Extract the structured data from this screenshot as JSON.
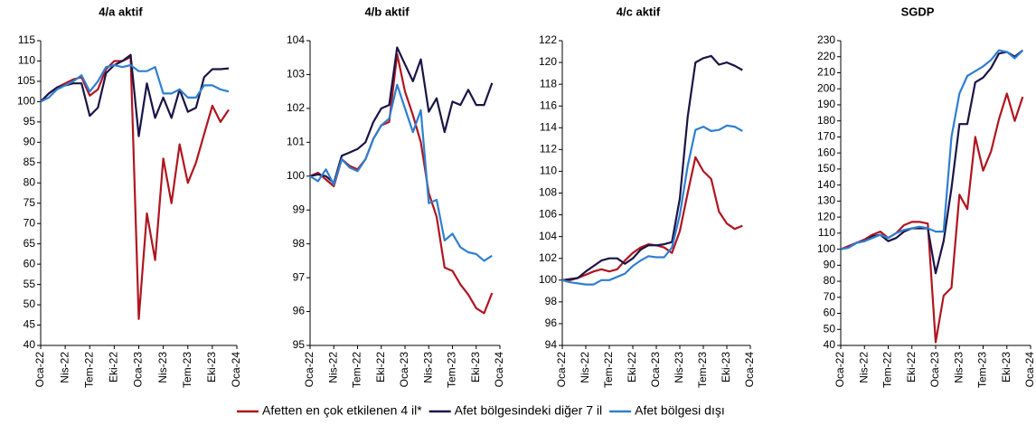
{
  "chart_data": [
    {
      "type": "line",
      "title": "4/a aktif",
      "categories": [
        "Oca-22",
        null,
        null,
        "Nis-22",
        null,
        null,
        "Tem-22",
        null,
        null,
        "Eki-22",
        null,
        null,
        "Oca-23",
        null,
        null,
        "Nis-23",
        null,
        null,
        "Tem-23",
        null,
        null,
        "Eki-23",
        null,
        null,
        "Oca-24"
      ],
      "ylim": [
        40,
        115
      ],
      "yticks": [
        40,
        45,
        50,
        55,
        60,
        65,
        70,
        75,
        80,
        85,
        90,
        95,
        100,
        105,
        110,
        115
      ],
      "series": [
        {
          "name": "Afetten en çok etkilenen 4 il*",
          "color": "#b0151f",
          "values": [
            100,
            102,
            103.5,
            104.5,
            105.5,
            106,
            101.5,
            103,
            108,
            110,
            110,
            111,
            46.5,
            72.5,
            61,
            86,
            75,
            89.5,
            80,
            85,
            92,
            99,
            95,
            98,
            null
          ]
        },
        {
          "name": "Afet bölgesindeki diğer 7 il",
          "color": "#1a1446",
          "values": [
            100,
            102,
            103.5,
            104,
            104.5,
            104.5,
            96.5,
            98.5,
            107,
            109,
            110,
            111.5,
            91.5,
            104.5,
            96,
            101,
            96,
            103,
            97.5,
            98.5,
            106,
            108,
            108,
            108.2,
            null
          ]
        },
        {
          "name": "Afet bölgesi dışı",
          "color": "#2e7fd1",
          "values": [
            100,
            101,
            103,
            104,
            105,
            106.5,
            102.5,
            105,
            108.5,
            109,
            108.5,
            109,
            107.5,
            107.5,
            108.5,
            102,
            102,
            103,
            101,
            101,
            104,
            104,
            103,
            102.5,
            null
          ]
        }
      ]
    },
    {
      "type": "line",
      "title": "4/b aktif",
      "categories": [
        "Oca-22",
        null,
        null,
        "Nis-22",
        null,
        null,
        "Tem-22",
        null,
        null,
        "Eki-22",
        null,
        null,
        "Oca-23",
        null,
        null,
        "Nis-23",
        null,
        null,
        "Tem-23",
        null,
        null,
        "Eki-23",
        null,
        null,
        "Oca-24"
      ],
      "ylim": [
        95,
        104
      ],
      "yticks": [
        95,
        96,
        97,
        98,
        99,
        100,
        101,
        102,
        103,
        104
      ],
      "series": [
        {
          "name": "Afetten en çok etkilenen 4 il*",
          "color": "#b0151f",
          "values": [
            100,
            100.1,
            99.9,
            99.7,
            100.5,
            100.3,
            100.2,
            100.5,
            101.1,
            101.5,
            101.6,
            103.6,
            102.5,
            101.8,
            101,
            99.5,
            98.8,
            97.3,
            97.2,
            96.8,
            96.5,
            96.1,
            95.95,
            96.55,
            null
          ]
        },
        {
          "name": "Afet bölgesindeki diğer 7 il",
          "color": "#1a1446",
          "values": [
            100,
            100.05,
            100,
            99.8,
            100.6,
            100.7,
            100.8,
            101,
            101.6,
            102,
            102.1,
            103.8,
            103.3,
            102.8,
            103.45,
            101.9,
            102.3,
            101.3,
            102.2,
            102.1,
            102.55,
            102.1,
            102.1,
            102.75,
            null
          ]
        },
        {
          "name": "Afet bölgesi dışı",
          "color": "#2e7fd1",
          "values": [
            100,
            99.85,
            100.2,
            99.75,
            100.5,
            100.25,
            100.15,
            100.5,
            101.1,
            101.5,
            101.7,
            102.7,
            102,
            101.3,
            101.95,
            99.2,
            99.3,
            98.1,
            98.3,
            97.9,
            97.75,
            97.7,
            97.5,
            97.65,
            null
          ]
        }
      ]
    },
    {
      "type": "line",
      "title": "4/c aktif",
      "categories": [
        "Oca-22",
        null,
        null,
        "Nis-22",
        null,
        null,
        "Tem-22",
        null,
        null,
        "Eki-22",
        null,
        null,
        "Oca-23",
        null,
        null,
        "Nis-23",
        null,
        null,
        "Tem-23",
        null,
        null,
        "Eki-23",
        null,
        null,
        "Oca-24"
      ],
      "ylim": [
        94,
        122
      ],
      "yticks": [
        94,
        96,
        98,
        100,
        102,
        104,
        106,
        108,
        110,
        112,
        114,
        116,
        118,
        120,
        122
      ],
      "series": [
        {
          "name": "Afetten en çok etkilenen 4 il*",
          "color": "#b0151f",
          "values": [
            100,
            100,
            100.2,
            100.5,
            100.8,
            101,
            100.8,
            101,
            101.8,
            102.5,
            103,
            103.3,
            103.2,
            103,
            102.5,
            104.5,
            108,
            111.3,
            110,
            109.3,
            106.3,
            105.2,
            104.7,
            105,
            null
          ]
        },
        {
          "name": "Afet bölgesindeki diğer 7 il",
          "color": "#1a1446",
          "values": [
            100,
            100.1,
            100.2,
            100.8,
            101.3,
            101.8,
            102,
            102,
            101.5,
            102,
            102.8,
            103.2,
            103.2,
            103.3,
            103.5,
            107.5,
            115,
            120,
            120.4,
            120.6,
            119.8,
            120,
            119.7,
            119.3,
            null
          ]
        },
        {
          "name": "Afet bölgesi dışı",
          "color": "#2e7fd1",
          "values": [
            100,
            99.8,
            99.7,
            99.6,
            99.6,
            100,
            100,
            100.3,
            100.6,
            101.3,
            101.8,
            102.2,
            102.1,
            102.1,
            103,
            106,
            110.5,
            113.8,
            114.1,
            113.7,
            113.8,
            114.2,
            114.1,
            113.7,
            null
          ]
        }
      ]
    },
    {
      "type": "line",
      "title": "SGDP",
      "categories": [
        "Oca-22",
        null,
        null,
        "Nis-22",
        null,
        null,
        "Tem-22",
        null,
        null,
        "Eki-22",
        null,
        null,
        "Oca-23",
        null,
        null,
        "Nis-23",
        null,
        null,
        "Tem-23",
        null,
        null,
        "Eki-23",
        null,
        null,
        "Oca-24"
      ],
      "ylim": [
        40,
        230
      ],
      "yticks": [
        40,
        50,
        60,
        70,
        80,
        90,
        100,
        110,
        120,
        130,
        140,
        150,
        160,
        170,
        180,
        190,
        200,
        210,
        220,
        230
      ],
      "series": [
        {
          "name": "Afetten en çok etkilenen 4 il*",
          "color": "#b0151f",
          "values": [
            100,
            102,
            104,
            106,
            109,
            111,
            107,
            110,
            115,
            117,
            117,
            116,
            42,
            71,
            76,
            134,
            125,
            170,
            149,
            161,
            181,
            197,
            180,
            195,
            null
          ]
        },
        {
          "name": "Afet bölgesindeki diğer 7 il",
          "color": "#1a1446",
          "values": [
            100,
            101,
            104,
            105,
            108,
            109,
            105,
            107,
            111,
            113,
            113,
            113,
            85,
            105,
            138,
            178,
            178,
            204,
            207,
            213,
            222,
            223,
            220,
            224,
            null
          ]
        },
        {
          "name": "Afet bölgesi dışı",
          "color": "#2e7fd1",
          "values": [
            100,
            101,
            104,
            105,
            107,
            109,
            107,
            110,
            112,
            113,
            114,
            113,
            111,
            111,
            170,
            197,
            208,
            211,
            214,
            218,
            224,
            223,
            219,
            224,
            null
          ]
        }
      ]
    }
  ]
}
